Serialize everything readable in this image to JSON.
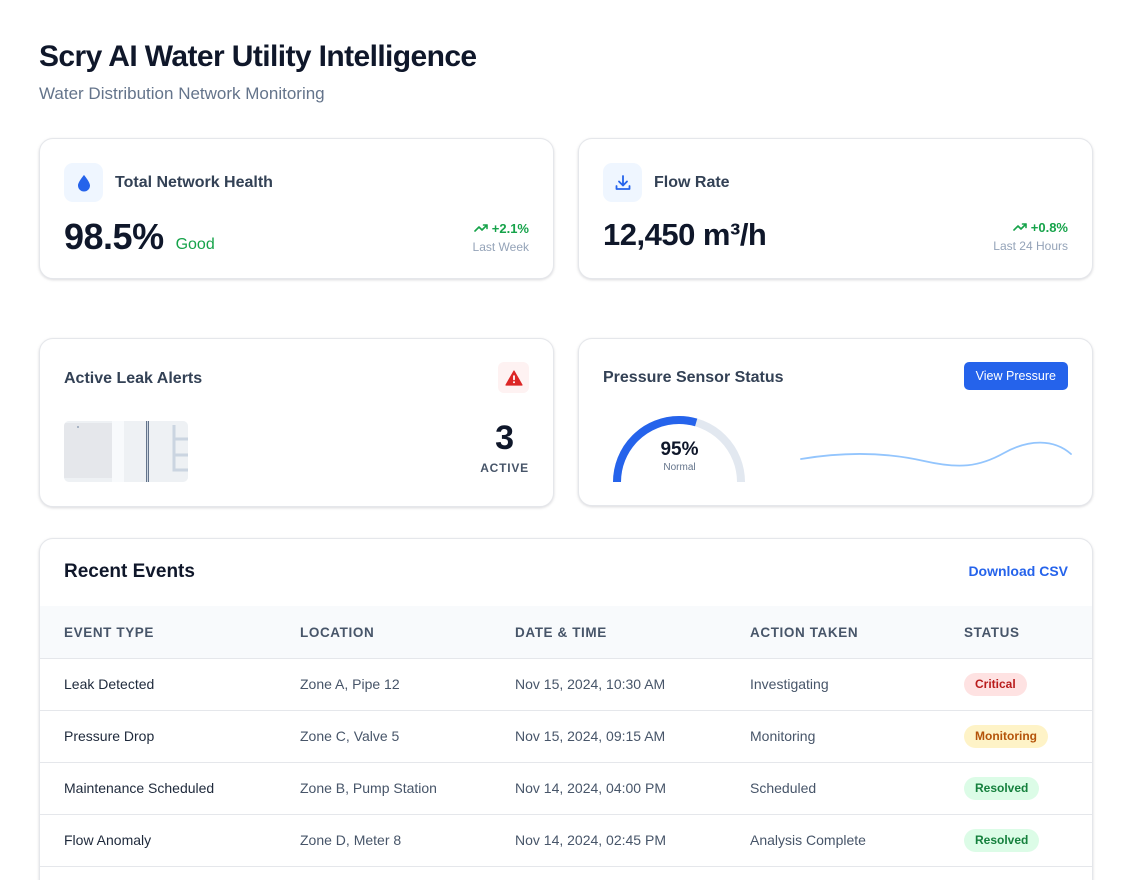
{
  "header": {
    "title": "Scry AI Water Utility Intelligence",
    "subtitle": "Water Distribution Network Monitoring"
  },
  "metrics": {
    "health": {
      "icon": "water-drop-icon",
      "label": "Total Network Health",
      "value": "98.5%",
      "qualifier": "Good",
      "trend_value": "+2.1%",
      "trend_period": "Last Week"
    },
    "flow": {
      "icon": "download-icon",
      "label": "Flow Rate",
      "value": "12,450 m³/h",
      "trend_value": "+0.8%",
      "trend_period": "Last 24 Hours"
    }
  },
  "leaks": {
    "title": "Active Leak Alerts",
    "icon": "warning-triangle-icon",
    "count": "3",
    "count_label": "ACTIVE"
  },
  "pressure": {
    "title": "Pressure Sensor Status",
    "button_label": "View Pressure",
    "gauge_value": "95%",
    "gauge_label": "Normal",
    "gauge_level": 0.95
  },
  "events": {
    "title": "Recent Events",
    "download_label": "Download CSV",
    "columns": [
      "EVENT TYPE",
      "LOCATION",
      "DATE & TIME",
      "ACTION TAKEN",
      "STATUS"
    ],
    "rows": [
      {
        "event": "Leak Detected",
        "location": "Zone A, Pipe 12",
        "datetime": "Nov 15, 2024, 10:30 AM",
        "action": "Investigating",
        "status": "Critical"
      },
      {
        "event": "Pressure Drop",
        "location": "Zone C, Valve 5",
        "datetime": "Nov 15, 2024, 09:15 AM",
        "action": "Monitoring",
        "status": "Monitoring"
      },
      {
        "event": "Maintenance Scheduled",
        "location": "Zone B, Pump Station",
        "datetime": "Nov 14, 2024, 04:00 PM",
        "action": "Scheduled",
        "status": "Resolved"
      },
      {
        "event": "Flow Anomaly",
        "location": "Zone D, Meter 8",
        "datetime": "Nov 14, 2024, 02:45 PM",
        "action": "Analysis Complete",
        "status": "Resolved"
      }
    ]
  },
  "colors": {
    "accent": "#2563eb",
    "positive": "#16a34a",
    "danger": "#dc2626",
    "critical_bg": "#fee2e2",
    "critical_fg": "#b91c1c",
    "monitoring_bg": "#fef3c7",
    "monitoring_fg": "#b45309",
    "resolved_bg": "#dcfce7",
    "resolved_fg": "#15803d"
  }
}
